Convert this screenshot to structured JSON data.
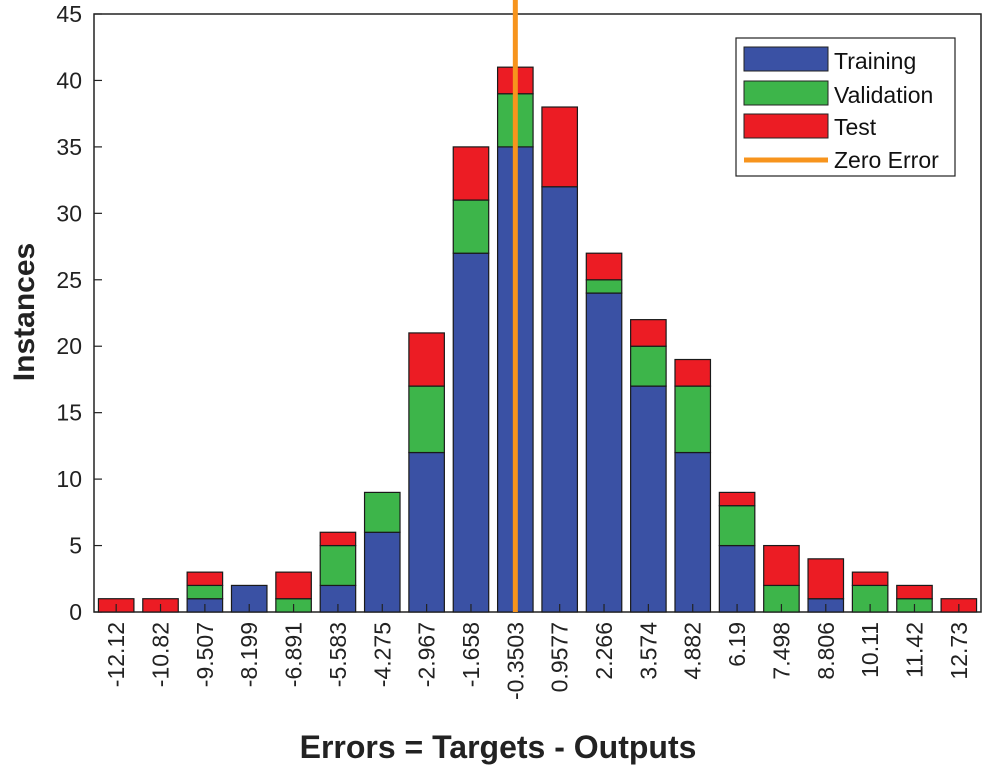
{
  "chart_data": {
    "type": "bar",
    "stacked": true,
    "title": "",
    "xlabel": "Errors = Targets - Outputs",
    "ylabel": "Instances",
    "ylim": [
      0,
      45
    ],
    "yticks": [
      "0",
      "5",
      "10",
      "15",
      "20",
      "25",
      "30",
      "35",
      "40",
      "45"
    ],
    "categories": [
      "-12.12",
      "-10.82",
      "-9.507",
      "-8.199",
      "-6.891",
      "-5.583",
      "-4.275",
      "-2.967",
      "-1.658",
      "-0.3503",
      "0.9577",
      "2.266",
      "3.574",
      "4.882",
      "6.19",
      "7.498",
      "8.806",
      "10.11",
      "11.42",
      "12.73"
    ],
    "series": [
      {
        "name": "Training",
        "color": "#3a51a4",
        "values": [
          0,
          0,
          1,
          2,
          0,
          2,
          6,
          12,
          27,
          35,
          32,
          24,
          17,
          12,
          5,
          0,
          1,
          0,
          0,
          0
        ]
      },
      {
        "name": "Validation",
        "color": "#3db54a",
        "values": [
          0,
          0,
          1,
          0,
          1,
          3,
          3,
          5,
          4,
          4,
          0,
          1,
          3,
          5,
          3,
          2,
          0,
          2,
          1,
          0
        ]
      },
      {
        "name": "Test",
        "color": "#ec1c24",
        "values": [
          1,
          1,
          1,
          0,
          2,
          1,
          0,
          4,
          4,
          2,
          6,
          2,
          2,
          2,
          1,
          3,
          3,
          1,
          1,
          1
        ]
      }
    ],
    "zero_error": {
      "name": "Zero Error",
      "color": "#f7941d",
      "x_category": "-0.3503"
    },
    "legend_position": "top-right",
    "grid": false
  }
}
